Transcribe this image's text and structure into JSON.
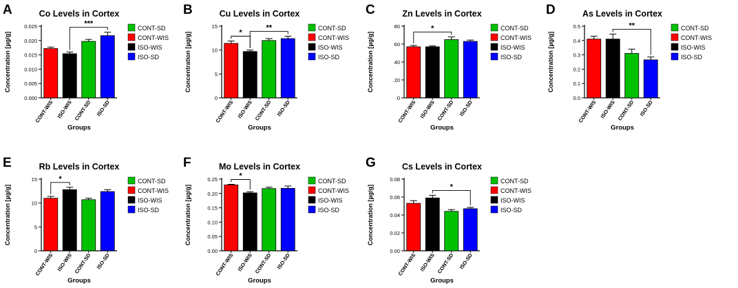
{
  "figure": {
    "colors": {
      "CONT-WIS": "#ff0000",
      "ISO-WIS": "#000000",
      "CONT-SD": "#00c000",
      "ISO-SD": "#0000ff"
    }
  },
  "chart_data": [
    {
      "letter": "A",
      "type": "bar",
      "title": "Co Levels in Cortex",
      "xlabel": "Groups",
      "ylabel": "Concentration [µg/g]",
      "categories": [
        "CONT-WIS",
        "ISO-WIS",
        "CONT-SD",
        "ISO-SD"
      ],
      "values": [
        0.0172,
        0.0154,
        0.0197,
        0.0217
      ],
      "errors": [
        0.0005,
        0.0006,
        0.0007,
        0.0012
      ],
      "ylim": [
        0,
        0.025
      ],
      "yticks": [
        0,
        0.005,
        0.01,
        0.015,
        0.02,
        0.025
      ],
      "ytick_labels": [
        "0.000",
        "0.005",
        "0.010",
        "0.015",
        "0.020",
        "0.025"
      ],
      "legend": [
        "CONT-SD",
        "CONT-WIS",
        "ISO-WIS",
        "ISO-SD"
      ],
      "significance": [
        {
          "from": 1,
          "to": 3,
          "label": "***"
        }
      ]
    },
    {
      "letter": "B",
      "type": "bar",
      "title": "Cu Levels in Cortex",
      "xlabel": "Groups",
      "ylabel": "Concentration [µg/g]",
      "categories": [
        "CONT-WIS",
        "ISO-WIS",
        "CONT-SD",
        "ISO-SD"
      ],
      "values": [
        11.4,
        9.7,
        12.0,
        12.4
      ],
      "errors": [
        0.5,
        0.3,
        0.4,
        0.5
      ],
      "ylim": [
        0,
        15
      ],
      "yticks": [
        0,
        5,
        10,
        15
      ],
      "ytick_labels": [
        "0",
        "5",
        "10",
        "15"
      ],
      "legend": [
        "CONT-SD",
        "CONT-WIS",
        "ISO-WIS",
        "ISO-SD"
      ],
      "significance": [
        {
          "from": 0,
          "to": 1,
          "label": "*"
        },
        {
          "from": 1,
          "to": 3,
          "label": "**"
        }
      ]
    },
    {
      "letter": "C",
      "type": "bar",
      "title": "Zn Levels in Cortex",
      "xlabel": "Groups",
      "ylabel": "Concentration [µg/g]",
      "categories": [
        "CONT-WIS",
        "ISO-WIS",
        "CONT-SD",
        "ISO-SD"
      ],
      "values": [
        57,
        57,
        65,
        63
      ],
      "errors": [
        1.5,
        1.0,
        3.0,
        1.5
      ],
      "ylim": [
        0,
        80
      ],
      "yticks": [
        0,
        20,
        40,
        60,
        80
      ],
      "ytick_labels": [
        "0",
        "20",
        "40",
        "60",
        "80"
      ],
      "legend": [
        "CONT-SD",
        "CONT-WIS",
        "ISO-WIS",
        "ISO-SD"
      ],
      "significance": [
        {
          "from": 0,
          "to": 2,
          "label": "*"
        }
      ]
    },
    {
      "letter": "D",
      "type": "bar",
      "title": "As Levels in Cortex",
      "xlabel": "Groups",
      "ylabel": "Concentration [µg/g]",
      "categories": [
        "CONT-WIS",
        "ISO-WIS",
        "CONT-SD",
        "ISO-SD"
      ],
      "values": [
        0.41,
        0.41,
        0.31,
        0.265
      ],
      "errors": [
        0.02,
        0.035,
        0.03,
        0.02
      ],
      "ylim": [
        0,
        0.5
      ],
      "yticks": [
        0,
        0.1,
        0.2,
        0.3,
        0.4,
        0.5
      ],
      "ytick_labels": [
        "0.0",
        "0.1",
        "0.2",
        "0.3",
        "0.4",
        "0.5"
      ],
      "legend": [
        "CONT-SD",
        "CONT-WIS",
        "ISO-WIS",
        "ISO-SD"
      ],
      "significance": [
        {
          "from": 1,
          "to": 3,
          "label": "**"
        }
      ]
    },
    {
      "letter": "E",
      "type": "bar",
      "title": "Rb Levels in Cortex",
      "xlabel": "Groups",
      "ylabel": "Concentration [µg/g]",
      "categories": [
        "CONT-WIS",
        "ISO-WIS",
        "CONT-SD",
        "ISO-SD"
      ],
      "values": [
        11.0,
        12.8,
        10.7,
        12.4
      ],
      "errors": [
        0.4,
        0.5,
        0.3,
        0.4
      ],
      "ylim": [
        0,
        15
      ],
      "yticks": [
        0,
        5,
        10,
        15
      ],
      "ytick_labels": [
        "0",
        "5",
        "10",
        "15"
      ],
      "legend": [
        "CONT-SD",
        "CONT-WIS",
        "ISO-WIS",
        "ISO-SD"
      ],
      "significance": [
        {
          "from": 0,
          "to": 1,
          "label": "*"
        }
      ]
    },
    {
      "letter": "F",
      "type": "bar",
      "title": "Mo Levels in Cortex",
      "xlabel": "Groups",
      "ylabel": "Concentration [µg/g]",
      "categories": [
        "CONT-WIS",
        "ISO-WIS",
        "CONT-SD",
        "ISO-SD"
      ],
      "values": [
        0.23,
        0.202,
        0.217,
        0.218
      ],
      "errors": [
        0.002,
        0.004,
        0.005,
        0.008
      ],
      "ylim": [
        0,
        0.25
      ],
      "yticks": [
        0,
        0.05,
        0.1,
        0.15,
        0.2,
        0.25
      ],
      "ytick_labels": [
        "0.00",
        "0.05",
        "0.10",
        "0.15",
        "0.20",
        "0.25"
      ],
      "legend": [
        "CONT-SD",
        "CONT-WIS",
        "ISO-WIS",
        "ISO-SD"
      ],
      "significance": [
        {
          "from": 0,
          "to": 1,
          "label": "*"
        }
      ]
    },
    {
      "letter": "G",
      "type": "bar",
      "title": "Cs Levels in Cortex",
      "xlabel": "Groups",
      "ylabel": "Concentration [µg/g]",
      "categories": [
        "CONT-WIS",
        "ISO-WIS",
        "CONT-SD",
        "ISO-SD"
      ],
      "values": [
        0.053,
        0.059,
        0.044,
        0.047
      ],
      "errors": [
        0.003,
        0.003,
        0.002,
        0.0015
      ],
      "ylim": [
        0,
        0.08
      ],
      "yticks": [
        0,
        0.02,
        0.04,
        0.06,
        0.08
      ],
      "ytick_labels": [
        "0.00",
        "0.02",
        "0.04",
        "0.06",
        "0.08"
      ],
      "legend": [
        "CONT-SD",
        "CONT-WIS",
        "ISO-WIS",
        "ISO-SD"
      ],
      "significance": [
        {
          "from": 1,
          "to": 3,
          "label": "*"
        }
      ]
    }
  ]
}
